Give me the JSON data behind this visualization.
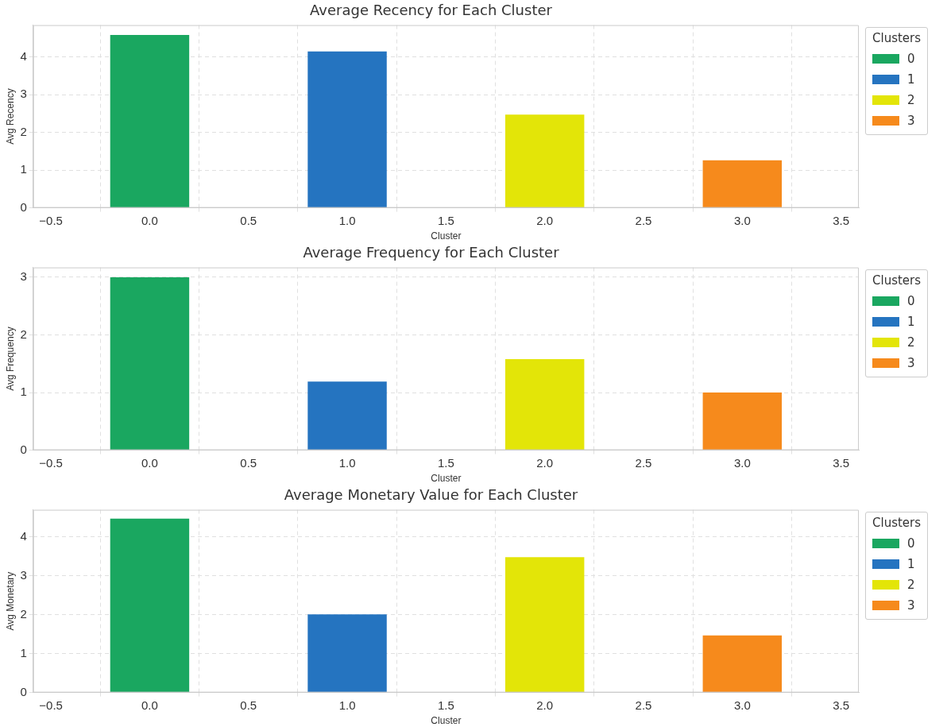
{
  "chart_data": [
    {
      "type": "bar",
      "title": "Average Recency for Each Cluster",
      "xlabel": "Cluster",
      "ylabel": "Avg Recency",
      "legend_title": "Clusters",
      "legend": "top right",
      "grid": true,
      "line_style": "dashed",
      "xlim": [
        -0.59,
        3.59
      ],
      "xticks": [
        {
          "value": -0.5,
          "label": "−0.5"
        },
        {
          "value": 0,
          "label": "0.0"
        },
        0.5,
        {
          "value": 1,
          "label": "1.0"
        },
        1.5,
        {
          "value": 2,
          "label": "2.0"
        },
        2.5,
        {
          "value": 3,
          "label": "3.0"
        },
        3.5
      ],
      "ylim": [
        0,
        4.84
      ],
      "yticks": [
        0,
        1,
        2,
        3,
        4
      ],
      "series": [
        {
          "name": "0",
          "color": "#1aa760",
          "x": [
            0
          ],
          "values": [
            4.58
          ]
        },
        {
          "name": "1",
          "color": "#2574c0",
          "x": [
            1
          ],
          "values": [
            4.14
          ]
        },
        {
          "name": "2",
          "color": "#e3e508",
          "x": [
            2
          ],
          "values": [
            2.47
          ]
        },
        {
          "name": "3",
          "color": "#f68a1c",
          "x": [
            3
          ],
          "values": [
            1.26
          ]
        }
      ]
    },
    {
      "type": "bar",
      "title": "Average Frequency for Each Cluster",
      "xlabel": "Cluster",
      "ylabel": "Avg Frequency",
      "legend_title": "Clusters",
      "legend": "top right",
      "grid": true,
      "line_style": "dashed",
      "xlim": [
        -0.59,
        3.59
      ],
      "xticks": [
        {
          "value": -0.5,
          "label": "−0.5"
        },
        {
          "value": 0,
          "label": "0.0"
        },
        0.5,
        {
          "value": 1,
          "label": "1.0"
        },
        1.5,
        {
          "value": 2,
          "label": "2.0"
        },
        2.5,
        {
          "value": 3,
          "label": "3.0"
        },
        3.5
      ],
      "ylim": [
        0,
        3.17
      ],
      "yticks": [
        0,
        1,
        2,
        3
      ],
      "series": [
        {
          "name": "0",
          "color": "#1aa760",
          "x": [
            0
          ],
          "values": [
            3.0
          ]
        },
        {
          "name": "1",
          "color": "#2574c0",
          "x": [
            1
          ],
          "values": [
            1.19
          ]
        },
        {
          "name": "2",
          "color": "#e3e508",
          "x": [
            2
          ],
          "values": [
            1.58
          ]
        },
        {
          "name": "3",
          "color": "#f68a1c",
          "x": [
            3
          ],
          "values": [
            1.0
          ]
        }
      ]
    },
    {
      "type": "bar",
      "title": "Average Monetary Value for Each Cluster",
      "xlabel": "Cluster",
      "ylabel": "Avg Monetary",
      "legend_title": "Clusters",
      "legend": "top right",
      "grid": true,
      "line_style": "dashed",
      "xlim": [
        -0.59,
        3.59
      ],
      "xticks": [
        {
          "value": -0.5,
          "label": "−0.5"
        },
        {
          "value": 0,
          "label": "0.0"
        },
        0.5,
        {
          "value": 1,
          "label": "1.0"
        },
        1.5,
        {
          "value": 2,
          "label": "2.0"
        },
        2.5,
        {
          "value": 3,
          "label": "3.0"
        },
        3.5
      ],
      "ylim": [
        0,
        4.7
      ],
      "yticks": [
        0,
        1,
        2,
        3,
        4
      ],
      "series": [
        {
          "name": "0",
          "color": "#1aa760",
          "x": [
            0
          ],
          "values": [
            4.47
          ]
        },
        {
          "name": "1",
          "color": "#2574c0",
          "x": [
            1
          ],
          "values": [
            2.01
          ]
        },
        {
          "name": "2",
          "color": "#e3e508",
          "x": [
            2
          ],
          "values": [
            3.48
          ]
        },
        {
          "name": "3",
          "color": "#f68a1c",
          "x": [
            3
          ],
          "values": [
            1.47
          ]
        }
      ]
    }
  ]
}
